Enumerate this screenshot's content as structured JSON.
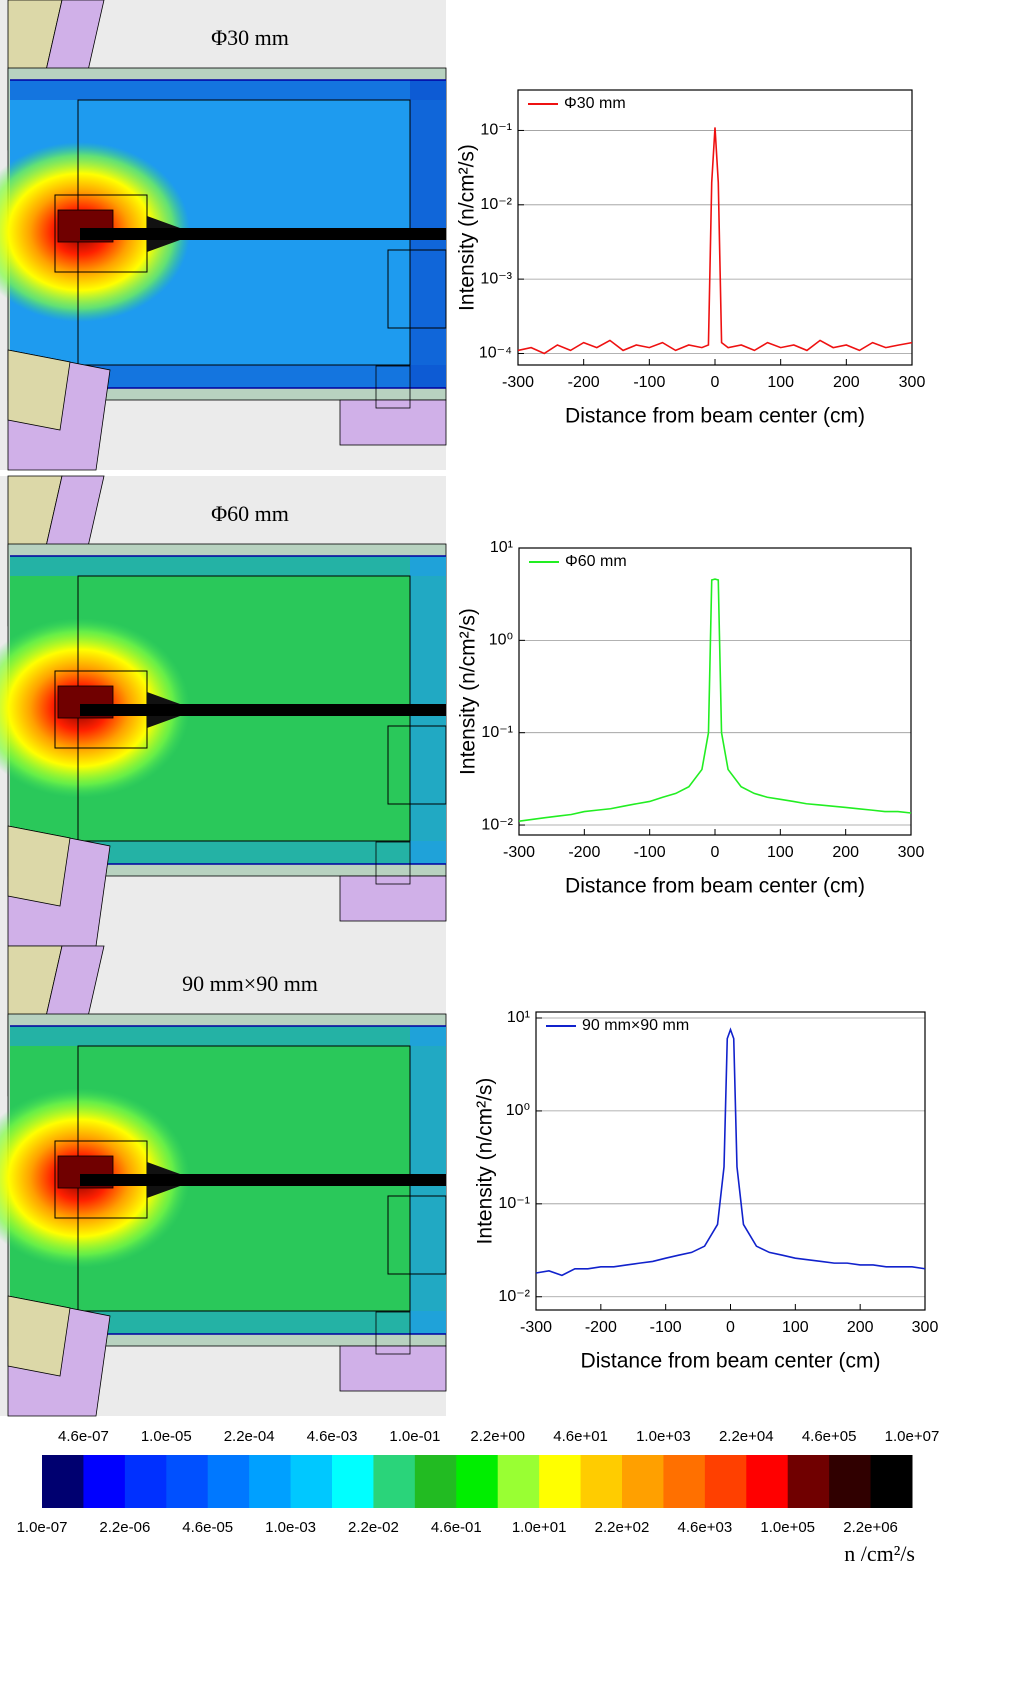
{
  "maps": [
    {
      "title": "Φ30 mm"
    },
    {
      "title": "Φ60 mm"
    },
    {
      "title": "90 mm×90 mm"
    }
  ],
  "colorbar": {
    "labels_top": [
      "4.6e-07",
      "1.0e-05",
      "2.2e-04",
      "4.6e-03",
      "1.0e-01",
      "2.2e+00",
      "4.6e+01",
      "1.0e+03",
      "2.2e+04",
      "4.6e+05",
      "1.0e+07"
    ],
    "labels_bottom": [
      "1.0e-07",
      "2.2e-06",
      "4.6e-05",
      "1.0e-03",
      "2.2e-02",
      "4.6e-01",
      "1.0e+01",
      "2.2e+02",
      "4.6e+03",
      "1.0e+05",
      "2.2e+06"
    ],
    "colors": [
      "#000070",
      "#0000ff",
      "#0030ff",
      "#0050ff",
      "#0078ff",
      "#00a0ff",
      "#00c8ff",
      "#00ffff",
      "#2ad47a",
      "#22bb22",
      "#00ee00",
      "#99ff33",
      "#ffff00",
      "#ffcc00",
      "#ffa000",
      "#ff7000",
      "#ff4000",
      "#ff0000",
      "#700000",
      "#300000",
      "#000000"
    ],
    "unit": "n /cm²/s"
  },
  "chart_data": [
    {
      "type": "line",
      "xlabel": "Distance from beam center (cm)",
      "ylabel": "Intensity (n/cm²/s)",
      "log_y": true,
      "grid": true,
      "legend": "upper left",
      "x": [
        -300,
        -280,
        -260,
        -240,
        -220,
        -200,
        -180,
        -160,
        -140,
        -120,
        -100,
        -80,
        -60,
        -40,
        -20,
        -10,
        -5,
        0,
        5,
        10,
        20,
        40,
        60,
        80,
        100,
        120,
        140,
        160,
        180,
        200,
        220,
        240,
        260,
        280,
        300
      ],
      "series": [
        {
          "name": "Φ30 mm",
          "color": "#ee1111",
          "values": [
            0.00011,
            0.00012,
            0.0001,
            0.00013,
            0.00011,
            0.00014,
            0.00012,
            0.00015,
            0.00011,
            0.00013,
            0.00012,
            0.00014,
            0.00011,
            0.00013,
            0.00012,
            0.00013,
            0.02,
            0.11,
            0.02,
            0.00014,
            0.00012,
            0.00013,
            0.00011,
            0.00014,
            0.00012,
            0.00013,
            0.00011,
            0.00015,
            0.00012,
            0.00013,
            0.00011,
            0.00014,
            0.00012,
            0.00013,
            0.00014
          ]
        }
      ],
      "xlim": [
        -300,
        300
      ],
      "xticks": [
        -300,
        -200,
        -100,
        0,
        100,
        200,
        300
      ],
      "ylim": [
        7e-05,
        0.35
      ],
      "yticks": [
        {
          "value": 0.0001,
          "label": "10⁻⁴"
        },
        {
          "value": 0.001,
          "label": "10⁻³"
        },
        {
          "value": 0.01,
          "label": "10⁻²"
        },
        {
          "value": 0.1,
          "label": "10⁻¹"
        }
      ]
    },
    {
      "type": "line",
      "xlabel": "Distance from beam center (cm)",
      "ylabel": "Intensity (n/cm²/s)",
      "log_y": true,
      "grid": true,
      "legend": "upper left",
      "x": [
        -300,
        -280,
        -260,
        -240,
        -220,
        -200,
        -180,
        -160,
        -140,
        -120,
        -100,
        -80,
        -60,
        -40,
        -20,
        -10,
        -5,
        0,
        5,
        10,
        20,
        40,
        60,
        80,
        100,
        120,
        140,
        160,
        180,
        200,
        220,
        240,
        260,
        280,
        300
      ],
      "series": [
        {
          "name": "Φ60 mm",
          "color": "#22ee22",
          "values": [
            0.011,
            0.0115,
            0.012,
            0.0125,
            0.013,
            0.014,
            0.0145,
            0.015,
            0.016,
            0.017,
            0.018,
            0.02,
            0.022,
            0.026,
            0.04,
            0.1,
            4.5,
            4.6,
            4.5,
            0.1,
            0.04,
            0.026,
            0.022,
            0.02,
            0.019,
            0.018,
            0.017,
            0.0165,
            0.016,
            0.0155,
            0.015,
            0.0145,
            0.014,
            0.014,
            0.0135
          ]
        }
      ],
      "xlim": [
        -300,
        300
      ],
      "xticks": [
        -300,
        -200,
        -100,
        0,
        100,
        200,
        300
      ],
      "ylim": [
        0.0078,
        10
      ],
      "yticks": [
        {
          "value": 0.01,
          "label": "10⁻²"
        },
        {
          "value": 0.1,
          "label": "10⁻¹"
        },
        {
          "value": 1,
          "label": "10⁰"
        },
        {
          "value": 10,
          "label": "10¹"
        }
      ]
    },
    {
      "type": "line",
      "xlabel": "Distance from beam center (cm)",
      "ylabel": "Intensity (n/cm²/s)",
      "log_y": true,
      "grid": true,
      "legend": "upper left",
      "x": [
        -300,
        -280,
        -260,
        -240,
        -220,
        -200,
        -180,
        -160,
        -140,
        -120,
        -100,
        -80,
        -60,
        -40,
        -20,
        -10,
        -5,
        0,
        5,
        10,
        20,
        40,
        60,
        80,
        100,
        120,
        140,
        160,
        180,
        200,
        220,
        240,
        260,
        280,
        300
      ],
      "series": [
        {
          "name": "90 mm×90 mm",
          "color": "#1122cc",
          "values": [
            0.018,
            0.019,
            0.017,
            0.02,
            0.02,
            0.021,
            0.021,
            0.022,
            0.023,
            0.024,
            0.026,
            0.028,
            0.03,
            0.035,
            0.06,
            0.25,
            6,
            7.5,
            6,
            0.25,
            0.06,
            0.035,
            0.03,
            0.028,
            0.026,
            0.025,
            0.024,
            0.023,
            0.023,
            0.022,
            0.022,
            0.021,
            0.021,
            0.021,
            0.02
          ]
        }
      ],
      "xlim": [
        -300,
        300
      ],
      "xticks": [
        -300,
        -200,
        -100,
        0,
        100,
        200,
        300
      ],
      "ylim": [
        0.0072,
        11.6
      ],
      "yticks": [
        {
          "value": 0.01,
          "label": "10⁻²"
        },
        {
          "value": 0.1,
          "label": "10⁻¹"
        },
        {
          "value": 1,
          "label": "10⁰"
        },
        {
          "value": 10,
          "label": "10¹"
        }
      ]
    }
  ]
}
